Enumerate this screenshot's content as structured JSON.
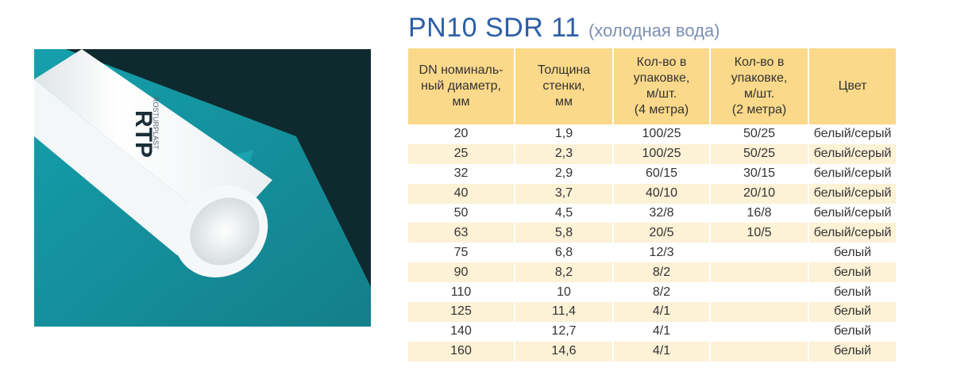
{
  "title": {
    "main": "PN10 SDR 11",
    "sub": "(холодная вода)"
  },
  "photo": {
    "brand_text": "RTP",
    "pipe_print": "ROSTURPLAST",
    "bg_letters": "R"
  },
  "table": {
    "headers": [
      [
        "DN номиналь-",
        "ный диаметр,",
        "мм"
      ],
      [
        "Толщина",
        "стенки,",
        "мм"
      ],
      [
        "Кол-во в",
        "упаковке,",
        "м/шт.",
        "(4 метра)"
      ],
      [
        "Кол-во в",
        "упаковке,",
        "м/шт.",
        "(2 метра)"
      ],
      [
        "Цвет"
      ]
    ],
    "rows": [
      [
        "20",
        "1,9",
        "100/25",
        "50/25",
        "белый/серый"
      ],
      [
        "25",
        "2,3",
        "100/25",
        "50/25",
        "белый/серый"
      ],
      [
        "32",
        "2,9",
        "60/15",
        "30/15",
        "белый/серый"
      ],
      [
        "40",
        "3,7",
        "40/10",
        "20/10",
        "белый/серый"
      ],
      [
        "50",
        "4,5",
        "32/8",
        "16/8",
        "белый/серый"
      ],
      [
        "63",
        "5,8",
        "20/5",
        "10/5",
        "белый/серый"
      ],
      [
        "75",
        "6,8",
        "12/3",
        "",
        "белый"
      ],
      [
        "90",
        "8,2",
        "8/2",
        "",
        "белый"
      ],
      [
        "110",
        "10",
        "8/2",
        "",
        "белый"
      ],
      [
        "125",
        "11,4",
        "4/1",
        "",
        "белый"
      ],
      [
        "140",
        "12,7",
        "4/1",
        "",
        "белый"
      ],
      [
        "160",
        "14,6",
        "4/1",
        "",
        "белый"
      ]
    ]
  },
  "colors": {
    "header_bg": "#fbd98a",
    "stripe_bg": "#fdf1d6",
    "title": "#2c5ea8",
    "photo_bg": "#1c9aa5"
  }
}
